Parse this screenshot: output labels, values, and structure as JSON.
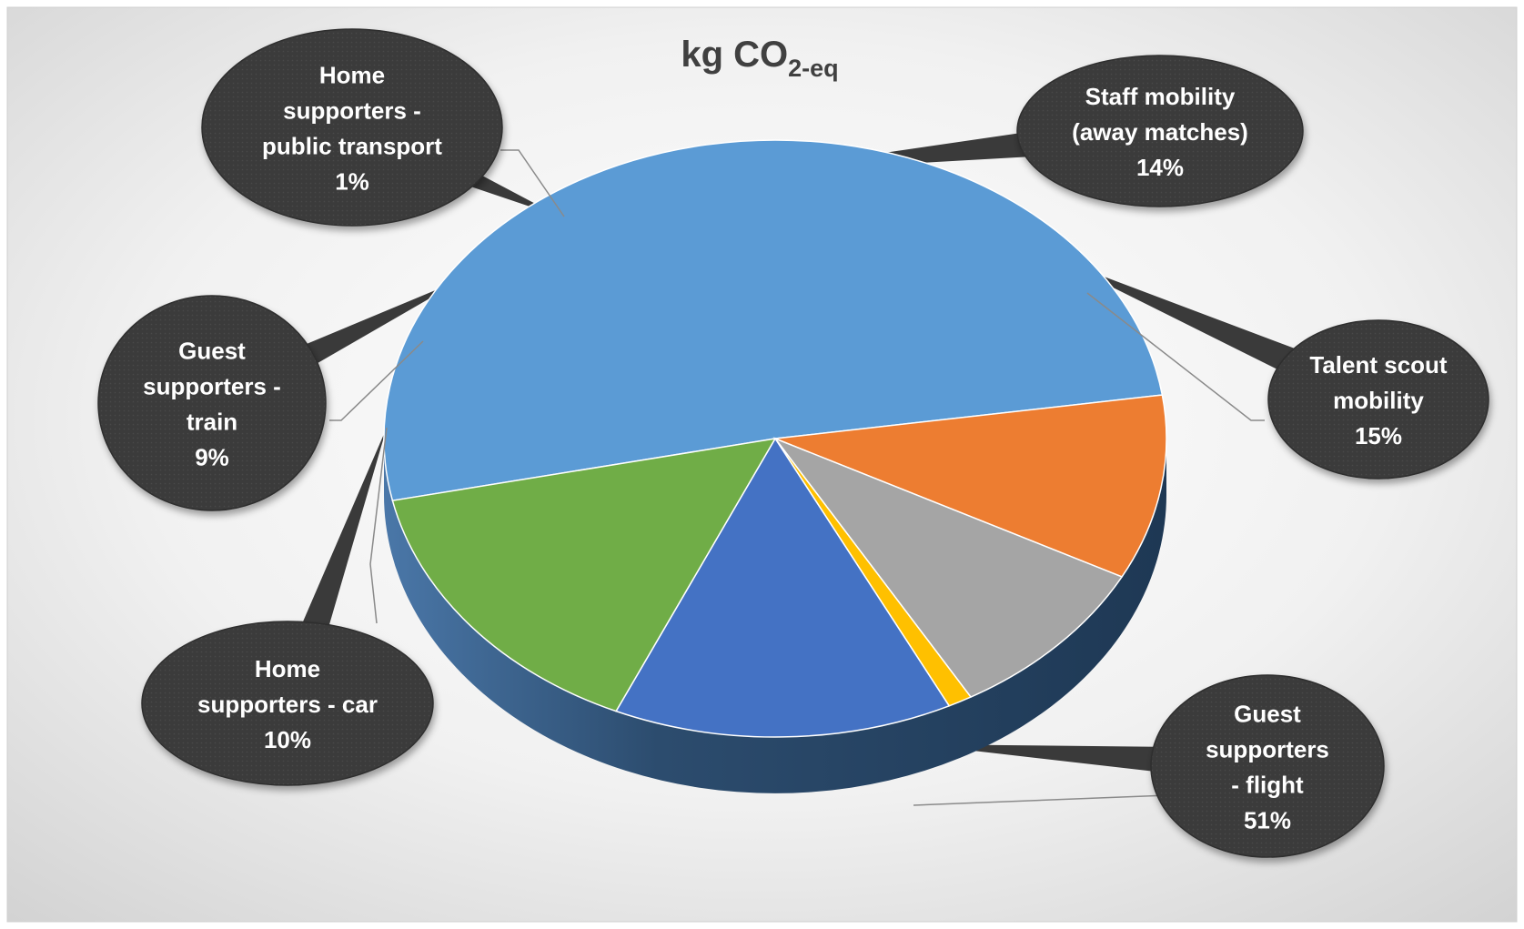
{
  "chart_data": {
    "type": "pie",
    "title": "kg CO",
    "title_subscript": "2-eq",
    "slices": [
      {
        "label_lines": [
          "Guest",
          "supporters",
          "- flight"
        ],
        "percent_label": "51%",
        "value": 51,
        "color": "#5b9bd5"
      },
      {
        "label_lines": [
          "Home",
          "supporters - car"
        ],
        "percent_label": "10%",
        "value": 10,
        "color": "#ed7d31"
      },
      {
        "label_lines": [
          "Guest",
          "supporters -",
          "train"
        ],
        "percent_label": "9%",
        "value": 9,
        "color": "#a5a5a5"
      },
      {
        "label_lines": [
          "Home",
          "supporters -",
          "public transport"
        ],
        "percent_label": "1%",
        "value": 1,
        "color": "#ffc000"
      },
      {
        "label_lines": [
          "Staff mobility",
          "(away matches)"
        ],
        "percent_label": "14%",
        "value": 14,
        "color": "#4472c4"
      },
      {
        "label_lines": [
          "Talent scout",
          "mobility"
        ],
        "percent_label": "15%",
        "value": 15,
        "color": "#70ad47"
      }
    ],
    "legend": "none",
    "label_style": "dark callout bubbles with leader lines"
  }
}
